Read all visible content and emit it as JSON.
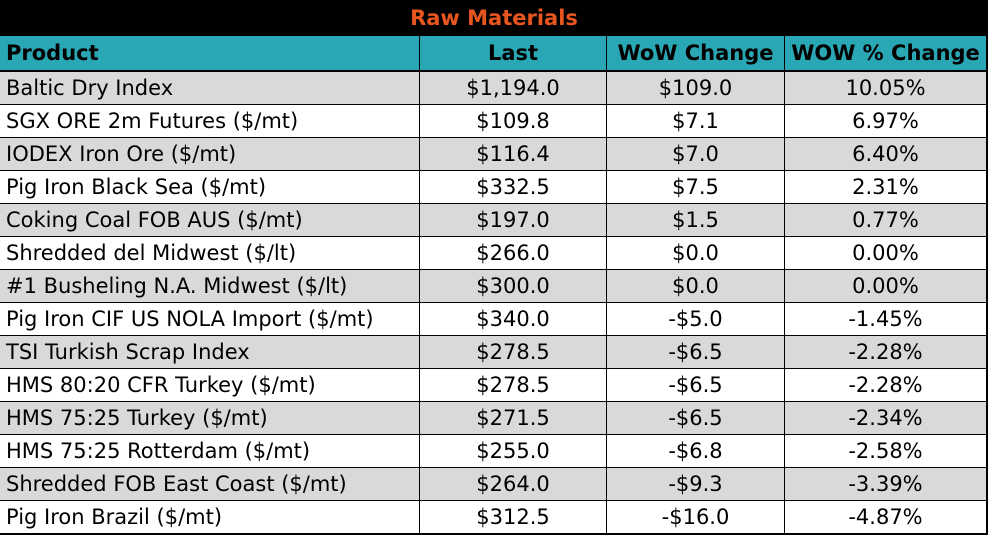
{
  "title": "Raw Materials",
  "columns": [
    "Product",
    "Last",
    "WoW Change",
    "WOW % Change"
  ],
  "rows": [
    [
      "Baltic Dry Index",
      "$1,194.0",
      "$109.0",
      "10.05%"
    ],
    [
      "SGX ORE 2m Futures ($/mt)",
      "$109.8",
      "$7.1",
      "6.97%"
    ],
    [
      "IODEX  Iron Ore ($/mt)",
      "$116.4",
      "$7.0",
      "6.40%"
    ],
    [
      "Pig Iron Black Sea ($/mt)",
      "$332.5",
      "$7.5",
      "2.31%"
    ],
    [
      "Coking Coal FOB AUS ($/mt)",
      "$197.0",
      "$1.5",
      "0.77%"
    ],
    [
      "Shredded del  Midwest ($/lt)",
      "$266.0",
      "$0.0",
      "0.00%"
    ],
    [
      "#1 Busheling N.A. Midwest ($/lt)",
      "$300.0",
      "$0.0",
      "0.00%"
    ],
    [
      "Pig Iron CIF US NOLA Import ($/mt)",
      "$340.0",
      "-$5.0",
      "-1.45%"
    ],
    [
      "TSI Turkish Scrap Index",
      "$278.5",
      "-$6.5",
      "-2.28%"
    ],
    [
      "HMS 80:20 CFR Turkey ($/mt)",
      "$278.5",
      "-$6.5",
      "-2.28%"
    ],
    [
      "HMS 75:25 Turkey ($/mt)",
      "$271.5",
      "-$6.5",
      "-2.34%"
    ],
    [
      "HMS 75:25 Rotterdam ($/mt)",
      "$255.0",
      "-$6.8",
      "-2.58%"
    ],
    [
      "Shredded FOB East Coast ($/mt)",
      "$264.0",
      "-$9.3",
      "-3.39%"
    ],
    [
      "Pig Iron Brazil ($/mt)",
      "$312.5",
      "-$16.0",
      "-4.87%"
    ]
  ],
  "colors": {
    "title_background": "#000000",
    "title_text": "#e8561f",
    "header_background": "#2aa7b4",
    "odd_row": "#d9d9d9",
    "even_row": "#ffffff"
  }
}
